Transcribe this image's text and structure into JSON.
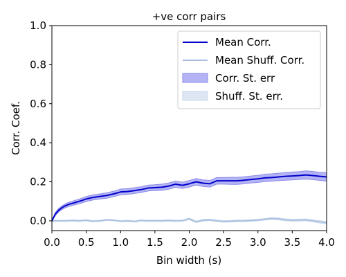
{
  "chart_data": {
    "type": "line",
    "title": "+ve corr pairs",
    "xlabel": "Bin width (s)",
    "ylabel": "Corr. Coef.",
    "xlim": [
      0.0,
      4.0
    ],
    "ylim": [
      -0.05,
      1.0
    ],
    "xticks": [
      "0.0",
      "0.5",
      "1.0",
      "1.5",
      "2.0",
      "2.5",
      "3.0",
      "3.5",
      "4.0"
    ],
    "yticks": [
      "0.0",
      "0.2",
      "0.4",
      "0.6",
      "0.8",
      "1.0"
    ],
    "grid": false,
    "legend_position": "top-right",
    "x": [
      0.0,
      0.05,
      0.1,
      0.15,
      0.2,
      0.25,
      0.3,
      0.4,
      0.5,
      0.6,
      0.7,
      0.8,
      0.9,
      1.0,
      1.1,
      1.2,
      1.3,
      1.4,
      1.5,
      1.6,
      1.7,
      1.8,
      1.9,
      2.0,
      2.1,
      2.2,
      2.3,
      2.4,
      2.5,
      2.6,
      2.7,
      2.8,
      2.9,
      3.0,
      3.1,
      3.2,
      3.3,
      3.4,
      3.5,
      3.6,
      3.7,
      3.8,
      3.9,
      4.0
    ],
    "series": [
      {
        "name": "Mean Corr.",
        "color": "#0000cc",
        "values": [
          0.0,
          0.035,
          0.055,
          0.068,
          0.078,
          0.085,
          0.09,
          0.1,
          0.112,
          0.12,
          0.125,
          0.13,
          0.138,
          0.148,
          0.15,
          0.155,
          0.16,
          0.168,
          0.17,
          0.172,
          0.178,
          0.188,
          0.182,
          0.19,
          0.2,
          0.193,
          0.19,
          0.205,
          0.205,
          0.205,
          0.205,
          0.208,
          0.212,
          0.215,
          0.22,
          0.222,
          0.225,
          0.228,
          0.23,
          0.232,
          0.235,
          0.232,
          0.228,
          0.225
        ]
      },
      {
        "name": "Mean Shuff. Corr.",
        "color": "#a8bfe0",
        "values": [
          0.0,
          0.0,
          0.0,
          0.0,
          0.0,
          0.001,
          0.002,
          0.0,
          0.003,
          -0.002,
          0.0,
          0.005,
          0.003,
          -0.002,
          0.0,
          -0.003,
          0.002,
          0.0,
          0.001,
          0.0,
          0.002,
          0.0,
          0.001,
          0.01,
          -0.005,
          0.003,
          0.005,
          0.0,
          -0.003,
          -0.002,
          0.0,
          0.0,
          0.002,
          0.004,
          0.008,
          0.012,
          0.01,
          0.005,
          0.003,
          0.004,
          0.005,
          0.0,
          -0.005,
          -0.01
        ]
      }
    ],
    "bands": [
      {
        "name": "Corr. St. err",
        "fill": "#b4b4f4",
        "stroke": "#8a8ae8",
        "halfwidth": [
          0.0,
          0.008,
          0.009,
          0.01,
          0.01,
          0.011,
          0.011,
          0.012,
          0.013,
          0.013,
          0.013,
          0.014,
          0.014,
          0.015,
          0.015,
          0.015,
          0.015,
          0.015,
          0.015,
          0.016,
          0.016,
          0.016,
          0.016,
          0.017,
          0.017,
          0.017,
          0.017,
          0.017,
          0.017,
          0.018,
          0.018,
          0.018,
          0.018,
          0.018,
          0.019,
          0.019,
          0.019,
          0.02,
          0.02,
          0.02,
          0.021,
          0.021,
          0.021,
          0.022
        ]
      },
      {
        "name": "Shuff. St. err.",
        "fill": "#dde6f2",
        "stroke": "#c8d6ea",
        "halfwidth": [
          0.003,
          0.003,
          0.003,
          0.003,
          0.003,
          0.003,
          0.003,
          0.003,
          0.003,
          0.003,
          0.003,
          0.003,
          0.003,
          0.003,
          0.003,
          0.003,
          0.003,
          0.003,
          0.003,
          0.003,
          0.003,
          0.003,
          0.003,
          0.004,
          0.004,
          0.004,
          0.004,
          0.004,
          0.004,
          0.004,
          0.004,
          0.004,
          0.004,
          0.004,
          0.004,
          0.005,
          0.005,
          0.005,
          0.005,
          0.005,
          0.005,
          0.005,
          0.006,
          0.006
        ]
      }
    ],
    "legend": [
      "Mean Corr.",
      "Mean Shuff. Corr.",
      "Corr. St. err",
      "Shuff. St. err."
    ]
  }
}
